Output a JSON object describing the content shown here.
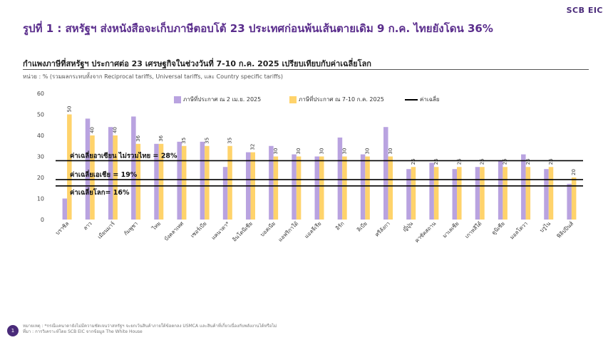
{
  "header": {
    "logo": "SCB EIC",
    "title": "รูปที่ 1 : สหรัฐฯ ส่งหนังสือจะเก็บภาษีตอบโต้ 23 ประเทศก่อนพ้นเส้นตายเดิม 9 ก.ค. ไทยยังโดน 36%",
    "subtitle": "กำแพงภาษีที่สหรัฐฯ ประกาศต่อ 23 เศรษฐกิจในช่วงวันที่ 7-10 ก.ค. 2025 เปรียบเทียบกับค่าเฉลี่ยโลก",
    "unit": "หน่วย : % (รวมผลกระทบทั้งจาก Reciprocal tariffs, Universal tariffs, และ Country specific tariffs)"
  },
  "footer": {
    "page_number": "1",
    "note": "หมายเหตุ : *กรณีแคนาดายังไม่มีความชัดเจนว่าสหรัฐฯ จะยกเว้นสินค้าภายใต้ข้อตกลง USMCA และสินค้าที่เกี่ยวเนื่องกับพลังงานได้หรือไม่",
    "source": "ที่มา : การวิเคราะห์โดย SCB EIC จากข้อมูล The White House"
  },
  "chart_data": {
    "type": "bar",
    "categories": [
      "บราซิล",
      "ลาว",
      "เมียนมาร์",
      "กัมพูชา",
      "ไทย",
      "บังคลาเทศ",
      "เซอร์เบีย",
      "แคนาดา*",
      "อินโดนีเซีย",
      "บอสเนีย",
      "แอฟริกาใต้",
      "แอลจีเรีย",
      "อิรัก",
      "ลิเบีย",
      "ศรีลังกา",
      "ญี่ปุ่น",
      "คาซัคสถาน",
      "มาเลเซีย",
      "เกาหลีใต้",
      "ตูนิเซีย",
      "มอลโดวา",
      "บรูไน",
      "ฟิลิปปินส์"
    ],
    "series": [
      {
        "name": "ภาษีที่ประกาศ ณ 2 เม.ย. 2025",
        "color": "#b9a3e0",
        "values": [
          10,
          48,
          44,
          49,
          36,
          37,
          37,
          25,
          32,
          35,
          31,
          30,
          39,
          31,
          44,
          24,
          27,
          24,
          25,
          28,
          31,
          24,
          17
        ]
      },
      {
        "name": "ภาษีที่ประกาศ ณ 7-10 ก.ค. 2025",
        "color": "#ffd36b",
        "values": [
          50,
          40,
          40,
          36,
          36,
          35,
          35,
          35,
          32,
          30,
          30,
          30,
          30,
          30,
          30,
          25,
          25,
          25,
          25,
          25,
          25,
          25,
          20
        ]
      }
    ],
    "data_labels": [
      "50",
      "40",
      "40",
      "36",
      "36",
      "35",
      "35",
      "35",
      "32",
      "30",
      "30",
      "30",
      "30",
      "30",
      "30",
      "25",
      "25",
      "25",
      "25",
      "25",
      "25",
      "25",
      "20"
    ],
    "ylim": [
      0,
      60
    ],
    "yticks": [
      "0",
      "10",
      "20",
      "30",
      "40",
      "50",
      "60"
    ],
    "reference_lines": [
      {
        "label": "ค่าเฉลี่ยอาเซียน ไม่รวมไทย = 28%",
        "value": 28
      },
      {
        "label": "ค่าเฉลี่ยเอเชีย = 19%",
        "value": 19
      },
      {
        "label": "ค่าเฉลี่ยโลก= 16%",
        "value": 16
      }
    ],
    "legend": [
      "ภาษีที่ประกาศ ณ 2 เม.ย. 2025",
      "ภาษีที่ประกาศ ณ 7-10 ก.ค. 2025",
      "ค่าเฉลี่ย"
    ],
    "legend_position": "top",
    "grid": false
  }
}
